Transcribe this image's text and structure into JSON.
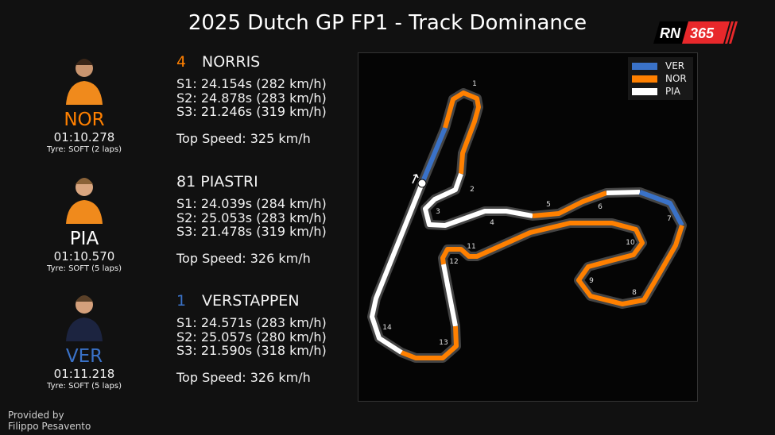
{
  "title": "2025 Dutch GP FP1 - Track Dominance",
  "logo": {
    "text_left": "RN",
    "text_right": "365"
  },
  "colors": {
    "VER": "#3a72c8",
    "NOR": "#ff8000",
    "PIA": "#ffffff"
  },
  "drivers": [
    {
      "code": "NOR",
      "number": "4",
      "name": "NORRIS",
      "lap_time": "01:10.278",
      "tyre": "Tyre: SOFT (2 laps)",
      "sectors": [
        "S1:  24.154s  (282 km/h)",
        "S2:  24.878s  (283 km/h)",
        "S3:  21.246s  (319 km/h)"
      ],
      "top_speed": "Top Speed: 325 km/h",
      "color": "#ff8000",
      "num_color": "#ff8000"
    },
    {
      "code": "PIA",
      "number": "81",
      "name": "PIASTRI",
      "lap_time": "01:10.570",
      "tyre": "Tyre: SOFT (5 laps)",
      "sectors": [
        "S1:  24.039s  (284 km/h)",
        "S2:  25.053s  (283 km/h)",
        "S3:  21.478s  (319 km/h)"
      ],
      "top_speed": "Top Speed: 326 km/h",
      "color": "#ffffff",
      "num_color": "#f2f2f2"
    },
    {
      "code": "VER",
      "number": "1",
      "name": "VERSTAPPEN",
      "lap_time": "01:11.218",
      "tyre": "Tyre: SOFT (5 laps)",
      "sectors": [
        "S1:  24.571s  (283 km/h)",
        "S2:  25.057s  (280 km/h)",
        "S3:  21.590s  (318 km/h)"
      ],
      "top_speed": "Top Speed: 326 km/h",
      "color": "#3a72c8",
      "num_color": "#3a72c8"
    }
  ],
  "credit": {
    "line1": "Provided by",
    "line2": "Filippo Pesavento"
  },
  "chart_data": {
    "type": "track-map",
    "title": "2025 Dutch GP FP1 - Track Dominance",
    "legend": [
      "VER",
      "NOR",
      "PIA"
    ],
    "legend_position": "top-right",
    "corners": [
      "1",
      "2",
      "3",
      "4",
      "5",
      "6",
      "7",
      "8",
      "9",
      "10",
      "11",
      "12",
      "13",
      "14"
    ],
    "minisector_dominance": [
      "VER",
      "NOR",
      "PIA",
      "NOR",
      "PIA",
      "VER",
      "NOR",
      "PIA",
      "NOR",
      "PIA"
    ]
  }
}
